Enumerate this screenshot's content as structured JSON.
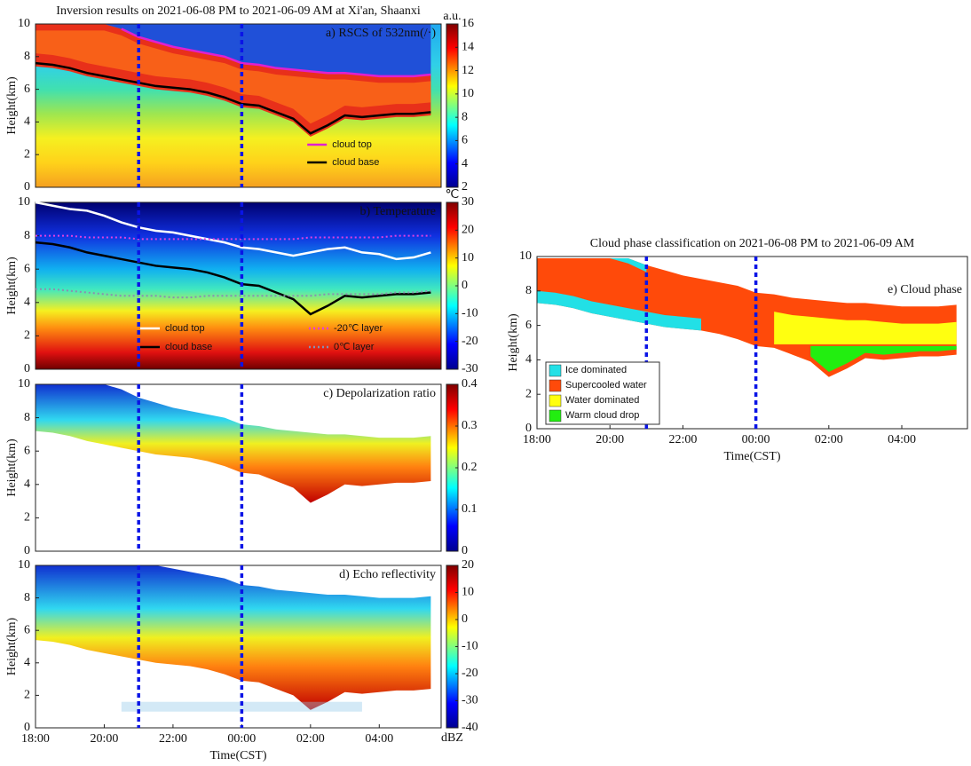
{
  "chart_data": [
    {
      "type": "heatmap",
      "title": "Inversion results on 2021-06-08 PM to 2021-06-09 AM at Xi'an, Shaanxi",
      "annotation": "a) RSCS of 532nm(/·)",
      "ylabel": "Height(km)",
      "xlim": [
        0,
        11.8
      ],
      "ylim": [
        0,
        10
      ],
      "yticks": [
        0,
        2,
        4,
        6,
        8,
        10
      ],
      "clim": [
        2,
        16
      ],
      "cticks": [
        2,
        4,
        6,
        8,
        10,
        12,
        14,
        16
      ],
      "cunit": "a.u.",
      "vlines": [
        3,
        6
      ],
      "vline_color": "#0a14e6",
      "legend": "lower right",
      "x": [
        0,
        0.5,
        1,
        1.5,
        2,
        2.5,
        3,
        3.5,
        4,
        4.5,
        5,
        5.5,
        6,
        6.5,
        7,
        7.5,
        8,
        8.5,
        9,
        9.5,
        10,
        10.5,
        11,
        11.5
      ],
      "series": [
        {
          "name": "cloud  top",
          "color": "#e020d0",
          "values": [
            null,
            null,
            null,
            null,
            null,
            9.7,
            9.2,
            8.9,
            8.6,
            8.4,
            8.2,
            8.0,
            7.6,
            7.5,
            7.3,
            7.2,
            7.1,
            7.0,
            7.0,
            6.9,
            6.8,
            6.8,
            6.8,
            6.9
          ]
        },
        {
          "name": "cloud  base",
          "color": "#000000",
          "values": [
            7.6,
            7.5,
            7.3,
            7.0,
            6.8,
            6.6,
            6.4,
            6.2,
            6.1,
            6.0,
            5.8,
            5.5,
            5.1,
            5.0,
            4.6,
            4.2,
            3.3,
            3.8,
            4.4,
            4.3,
            4.4,
            4.5,
            4.5,
            4.6
          ]
        }
      ]
    },
    {
      "type": "heatmap",
      "annotation": "b) Temperature",
      "ylabel": "Height(km)",
      "xlim": [
        0,
        11.8
      ],
      "ylim": [
        0,
        10
      ],
      "yticks": [
        0,
        2,
        4,
        6,
        8,
        10
      ],
      "clim": [
        -30,
        30
      ],
      "cticks": [
        -30,
        -20,
        -10,
        0,
        10,
        20,
        30
      ],
      "cunit": "℃",
      "vlines": [
        3,
        6
      ],
      "vline_color": "#0a14e6",
      "legend": "lower center",
      "x": [
        0,
        0.5,
        1,
        1.5,
        2,
        2.5,
        3,
        3.5,
        4,
        4.5,
        5,
        5.5,
        6,
        6.5,
        7,
        7.5,
        8,
        8.5,
        9,
        9.5,
        10,
        10.5,
        11,
        11.5
      ],
      "series": [
        {
          "name": "cloud top",
          "color": "#ffffff",
          "values": [
            10,
            9.8,
            9.6,
            9.5,
            9.2,
            8.8,
            8.5,
            8.3,
            8.2,
            8.0,
            7.8,
            7.6,
            7.3,
            7.2,
            7.0,
            6.8,
            7.0,
            7.2,
            7.3,
            7.0,
            6.9,
            6.6,
            6.7,
            7.0
          ]
        },
        {
          "name": "cloud base",
          "color": "#000000",
          "values": [
            7.6,
            7.5,
            7.3,
            7.0,
            6.8,
            6.6,
            6.4,
            6.2,
            6.1,
            6.0,
            5.8,
            5.5,
            5.1,
            5.0,
            4.6,
            4.2,
            3.3,
            3.8,
            4.4,
            4.3,
            4.4,
            4.5,
            4.5,
            4.6
          ]
        },
        {
          "name": "-20℃ layer",
          "color": "#e040e0",
          "style": "dotted",
          "values": [
            8.0,
            8.0,
            8.0,
            7.9,
            7.9,
            7.9,
            7.8,
            7.8,
            7.8,
            7.8,
            7.8,
            7.8,
            7.8,
            7.8,
            7.8,
            7.8,
            7.9,
            7.9,
            7.9,
            7.9,
            7.9,
            8.0,
            8.0,
            8.0
          ]
        },
        {
          "name": "0℃ layer",
          "color": "#8a8fb0",
          "style": "dotted",
          "values": [
            4.8,
            4.8,
            4.7,
            4.6,
            4.5,
            4.4,
            4.4,
            4.4,
            4.3,
            4.3,
            4.4,
            4.4,
            4.4,
            4.4,
            4.4,
            4.4,
            4.4,
            4.5,
            4.5,
            4.5,
            4.5,
            4.6,
            4.6,
            4.7
          ]
        }
      ]
    },
    {
      "type": "heatmap",
      "annotation": "c) Depolarization ratio",
      "ylabel": "Height(km)",
      "xlim": [
        0,
        11.8
      ],
      "ylim": [
        0,
        10
      ],
      "yticks": [
        0,
        2,
        4,
        6,
        8,
        10
      ],
      "clim": [
        0,
        0.4
      ],
      "cticks": [
        0,
        0.1,
        0.2,
        0.3,
        0.4
      ],
      "vlines": [
        3,
        6
      ],
      "vline_color": "#0a14e6"
    },
    {
      "type": "heatmap",
      "annotation": "d) Echo reflectivity",
      "ylabel": "Height(km)",
      "xlabel": "Time(CST)",
      "xlim": [
        0,
        11.8
      ],
      "ylim": [
        0,
        10
      ],
      "yticks": [
        0,
        2,
        4,
        6,
        8,
        10
      ],
      "xticks": [
        {
          "value": 0,
          "label": "18:00"
        },
        {
          "value": 2,
          "label": "20:00"
        },
        {
          "value": 4,
          "label": "22:00"
        },
        {
          "value": 6,
          "label": "00:00"
        },
        {
          "value": 8,
          "label": "02:00"
        },
        {
          "value": 10,
          "label": "04:00"
        }
      ],
      "clim": [
        -40,
        20
      ],
      "cticks": [
        -40,
        -30,
        -20,
        -10,
        0,
        10,
        20
      ],
      "cunit": "dBZ",
      "vlines": [
        3,
        6
      ],
      "vline_color": "#0a14e6"
    },
    {
      "type": "classification",
      "title": "Cloud phase classification on 2021-06-08 PM to 2021-06-09 AM",
      "annotation": "e) Cloud phase",
      "ylabel": "Height(km)",
      "xlabel": "Time(CST)",
      "xlim": [
        0,
        11.8
      ],
      "ylim": [
        0,
        10
      ],
      "yticks": [
        0,
        2,
        4,
        6,
        8,
        10
      ],
      "xticks": [
        {
          "value": 0,
          "label": "18:00"
        },
        {
          "value": 2,
          "label": "20:00"
        },
        {
          "value": 4,
          "label": "22:00"
        },
        {
          "value": 6,
          "label": "00:00"
        },
        {
          "value": 8,
          "label": "02:00"
        },
        {
          "value": 10,
          "label": "04:00"
        }
      ],
      "vlines": [
        3,
        6
      ],
      "vline_color": "#0a14e6",
      "legend": "lower left",
      "series": [
        {
          "name": "Ice dominated",
          "color": "#22e0e6"
        },
        {
          "name": "Supercooled water",
          "color": "#ff4a0a"
        },
        {
          "name": "Water dominated",
          "color": "#ffff10"
        },
        {
          "name": "Warm cloud drop",
          "color": "#22ee10"
        }
      ]
    }
  ]
}
